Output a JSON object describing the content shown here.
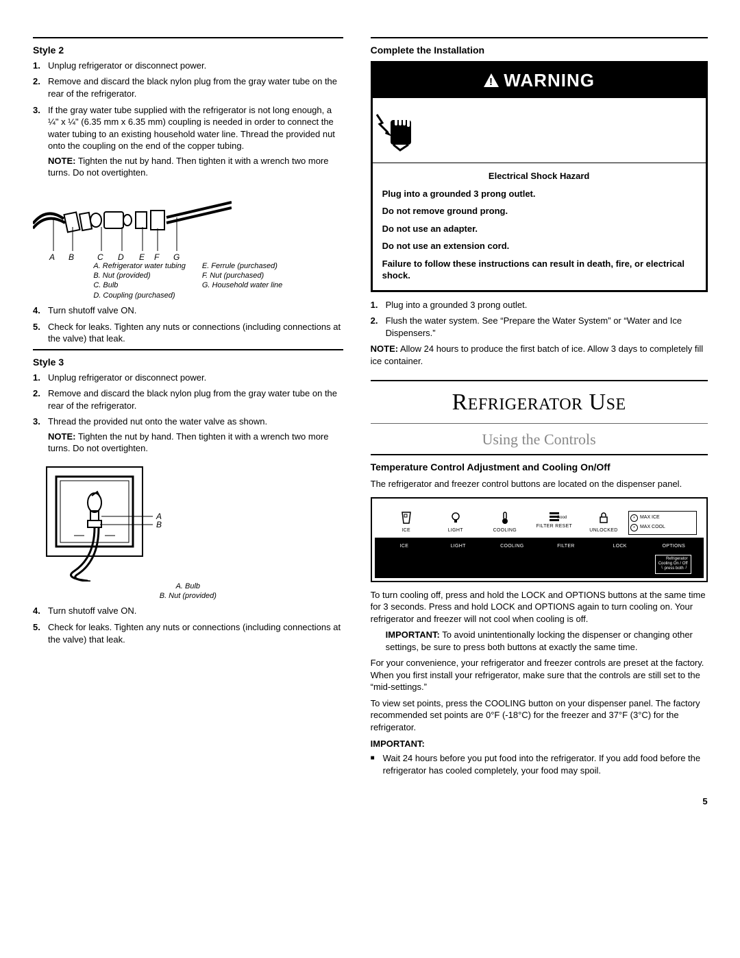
{
  "page_number": "5",
  "left": {
    "style2_heading": "Style 2",
    "style2_steps": [
      {
        "n": "1.",
        "paras": [
          "Unplug refrigerator or disconnect power."
        ]
      },
      {
        "n": "2.",
        "paras": [
          "Remove and discard the black nylon plug from the gray water tube on the rear of the refrigerator."
        ]
      },
      {
        "n": "3.",
        "paras": [
          "If the gray water tube supplied with the refrigerator is not long enough, a ¼\" x ¼\" (6.35 mm x 6.35 mm) coupling is needed in order to connect the water tubing to an existing household water line. Thread the provided nut onto the coupling on the end of the copper tubing.",
          "<b>NOTE:</b> Tighten the nut by hand. Then tighten it with a wrench two more turns. Do not overtighten."
        ]
      }
    ],
    "fig1_letters": "A    B        C       D       E     F     G",
    "fig1_left_caption": [
      "A. Refrigerator water tubing",
      "B. Nut (provided)",
      "C. Bulb",
      "D. Coupling (purchased)"
    ],
    "fig1_right_caption": [
      "E. Ferrule (purchased)",
      "F. Nut (purchased)",
      "G. Household water line"
    ],
    "style2_steps_b": [
      {
        "n": "4.",
        "paras": [
          "Turn shutoff valve ON."
        ]
      },
      {
        "n": "5.",
        "paras": [
          "Check for leaks. Tighten any nuts or connections (including connections at the valve) that leak."
        ]
      }
    ],
    "style3_heading": "Style 3",
    "style3_steps": [
      {
        "n": "1.",
        "paras": [
          "Unplug refrigerator or disconnect power."
        ]
      },
      {
        "n": "2.",
        "paras": [
          "Remove and discard the black nylon plug from the gray water tube on the rear of the refrigerator."
        ]
      },
      {
        "n": "3.",
        "paras": [
          "Thread the provided nut onto the water valve as shown.",
          "<b>NOTE:</b> Tighten the nut by hand. Then tighten it with a wrench two more turns. Do not overtighten."
        ]
      }
    ],
    "fig2_side_labels": [
      "A",
      "B"
    ],
    "fig2_caption": [
      "A. Bulb",
      "B. Nut (provided)"
    ],
    "style3_steps_b": [
      {
        "n": "4.",
        "paras": [
          "Turn shutoff valve ON."
        ]
      },
      {
        "n": "5.",
        "paras": [
          "Check for leaks. Tighten any nuts or connections (including connections at the valve) that leak."
        ]
      }
    ]
  },
  "right": {
    "complete_heading": "Complete the Installation",
    "warning_word": "WARNING",
    "warning_body_center": "Electrical Shock Hazard",
    "warning_body_lines": [
      "Plug into a grounded 3 prong outlet.",
      "Do not remove ground prong.",
      "Do not use an adapter.",
      "Do not use an extension cord.",
      "Failure to follow these instructions can result in death, fire, or electrical shock."
    ],
    "complete_steps": [
      {
        "n": "1.",
        "paras": [
          "Plug into a grounded 3 prong outlet."
        ]
      },
      {
        "n": "2.",
        "paras": [
          "Flush the water system. See “Prepare the Water System” or “Water and Ice Dispensers.”"
        ]
      }
    ],
    "complete_note": "<b>NOTE:</b> Allow 24 hours to produce the first batch of ice. Allow 3 days to completely fill ice container.",
    "section_title": "Refrigerator Use",
    "subsection": "Using the Controls",
    "temp_heading": "Temperature Control Adjustment and Cooling On/Off",
    "temp_intro": "The refrigerator and freezer control buttons are located on the dispenser panel.",
    "control_panel": {
      "icon_labels": [
        "ICE",
        "LIGHT",
        "COOLING",
        "FILTER RESET",
        "UNLOCKED"
      ],
      "filter_status": "Good",
      "side_labels": [
        "MAX ICE",
        "MAX COOL"
      ],
      "buttons": [
        "ICE",
        "LIGHT",
        "COOLING",
        "FILTER",
        "LOCK",
        "OPTIONS"
      ],
      "footer_lines": [
        "Refrigerator",
        "Cooling On / Off",
        "press  both"
      ]
    },
    "cooling_para": "To turn cooling off, press and hold the LOCK and OPTIONS buttons at the same time for 3 seconds. Press and hold LOCK and OPTIONS again to turn cooling on. Your refrigerator and freezer will not cool when cooling is off.",
    "important_para": "<b>IMPORTANT:</b> To avoid unintentionally locking the dispenser or changing other settings, be sure to press both buttons at exactly the same time.",
    "convenience_para": "For your convenience, your refrigerator and freezer controls are preset at the factory. When you first install your refrigerator, make sure that the controls are still set to the “mid-settings.”",
    "setpoints_para": "To view set points, press the COOLING button on your dispenser panel. The factory recommended set points are 0°F (-18°C) for the freezer and 37°F (3°C) for the refrigerator.",
    "important_label": "IMPORTANT:",
    "wait_bullet": "Wait 24 hours before you put food into the refrigerator. If you add food before the refrigerator has cooled completely, your food may spoil."
  }
}
